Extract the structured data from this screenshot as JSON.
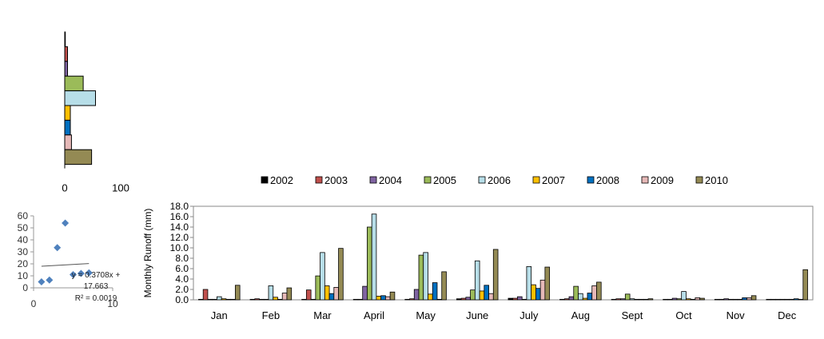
{
  "chart_data": [
    {
      "type": "bar",
      "orientation": "horizontal",
      "categories": [
        "2002",
        "2003",
        "2004",
        "2005",
        "2006",
        "2007",
        "2008",
        "2009",
        "2010"
      ],
      "values": [
        1,
        5,
        5,
        33,
        55,
        10,
        10,
        12,
        48
      ],
      "xlim": [
        0,
        100
      ],
      "xticks": [
        "0",
        "100"
      ],
      "grid": false
    },
    {
      "type": "scatter",
      "x": [
        1,
        2,
        3,
        4,
        5,
        6,
        7
      ],
      "y": [
        5,
        6.5,
        33.5,
        54,
        11,
        12,
        12.5
      ],
      "ylim": [
        0,
        60
      ],
      "xlim": [
        0,
        10
      ],
      "yticks": [
        "0",
        "10",
        "20",
        "30",
        "40",
        "50",
        "60"
      ],
      "xticks": [
        "0",
        "10"
      ],
      "trendline": {
        "slope": 0.3708,
        "intercept": 17.663
      },
      "equation_lines": [
        "y = 0.3708x +",
        "17.663",
        "R² = 0.0019"
      ],
      "marker_color": "#4F81BD"
    },
    {
      "type": "bar",
      "ylabel": "Monthly  Runoff (mm)",
      "ylim": [
        0,
        18
      ],
      "yticks": [
        "0.0",
        "2.0",
        "4.0",
        "6.0",
        "8.0",
        "10.0",
        "12.0",
        "14.0",
        "16.0",
        "18.0"
      ],
      "categories": [
        "Jan",
        "Feb",
        "Mar",
        "April",
        "May",
        "June",
        "July",
        "Aug",
        "Sept",
        "Oct",
        "Nov",
        "Dec"
      ],
      "legend_position": "top",
      "grid": false,
      "series": [
        {
          "name": "2002",
          "color": "#000000",
          "values": [
            0.1,
            0.1,
            0.1,
            0.1,
            0.1,
            0.2,
            0.3,
            0.1,
            0.1,
            0.1,
            0.1,
            0.1
          ]
        },
        {
          "name": "2003",
          "color": "#C0504D",
          "values": [
            2.0,
            0.2,
            1.9,
            0.1,
            0.2,
            0.3,
            0.3,
            0.2,
            0.2,
            0.1,
            0.1,
            0.1
          ]
        },
        {
          "name": "2004",
          "color": "#8064A2",
          "values": [
            0.1,
            0.1,
            0.1,
            2.6,
            2.0,
            0.5,
            0.6,
            0.6,
            0.2,
            0.3,
            0.2,
            0.1
          ]
        },
        {
          "name": "2005",
          "color": "#9BBB59",
          "values": [
            0.1,
            0.1,
            4.6,
            14.0,
            8.6,
            1.9,
            0.1,
            2.6,
            1.1,
            0.2,
            0.1,
            0.1
          ]
        },
        {
          "name": "2006",
          "color": "#B7DEE8",
          "values": [
            0.6,
            2.7,
            9.1,
            16.5,
            9.1,
            7.5,
            6.4,
            1.2,
            0.2,
            1.6,
            0.1,
            0.1
          ]
        },
        {
          "name": "2007",
          "color": "#FFC000",
          "values": [
            0.2,
            0.5,
            2.7,
            0.7,
            1.1,
            1.7,
            2.9,
            0.3,
            0.1,
            0.2,
            0.1,
            0.1
          ]
        },
        {
          "name": "2008",
          "color": "#0070C0",
          "values": [
            0.1,
            0.1,
            1.2,
            0.8,
            3.3,
            2.8,
            2.2,
            1.3,
            0.1,
            0.1,
            0.4,
            0.2
          ]
        },
        {
          "name": "2009",
          "color": "#E6B9B8",
          "values": [
            0.1,
            1.3,
            2.4,
            0.6,
            0.1,
            1.2,
            3.8,
            2.7,
            0.1,
            0.4,
            0.4,
            0.1
          ]
        },
        {
          "name": "2010",
          "color": "#948A54",
          "values": [
            2.8,
            2.3,
            9.9,
            1.5,
            5.4,
            9.7,
            6.3,
            3.4,
            0.2,
            0.3,
            0.8,
            5.8
          ]
        }
      ]
    }
  ]
}
